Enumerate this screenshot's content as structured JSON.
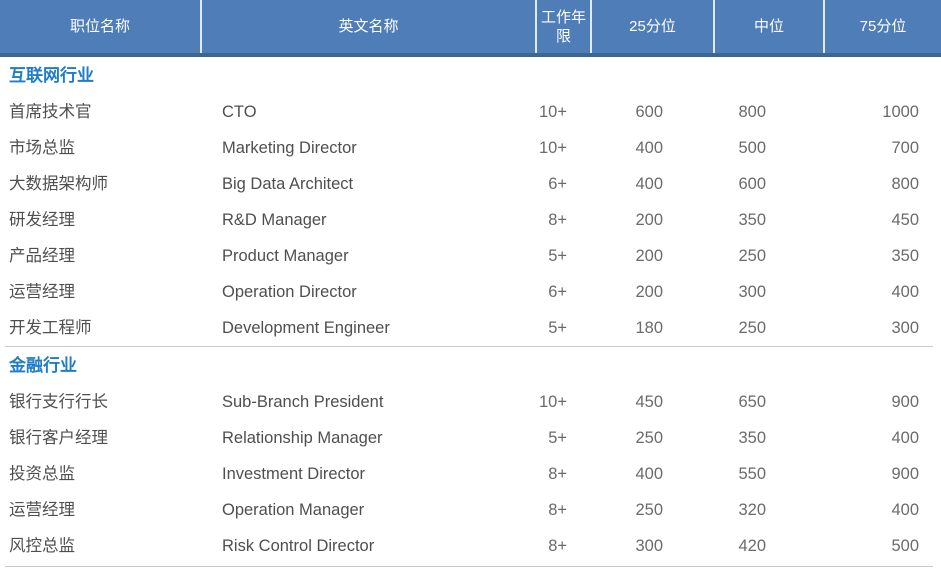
{
  "table": {
    "headers": [
      "职位名称",
      "英文名称",
      "工作年限",
      "25分位",
      "中位",
      "75分位"
    ],
    "sections": [
      {
        "title": "互联网行业",
        "rows": [
          {
            "position": "首席技术官",
            "english": "CTO",
            "years": "10+",
            "p25": "600",
            "median": "800",
            "p75": "1000"
          },
          {
            "position": "市场总监",
            "english": "Marketing Director",
            "years": "10+",
            "p25": "400",
            "median": "500",
            "p75": "700"
          },
          {
            "position": "大数据架构师",
            "english": "Big Data Architect",
            "years": "6+",
            "p25": "400",
            "median": "600",
            "p75": "800"
          },
          {
            "position": "研发经理",
            "english": "R&D Manager",
            "years": "8+",
            "p25": "200",
            "median": "350",
            "p75": "450"
          },
          {
            "position": "产品经理",
            "english": "Product Manager",
            "years": "5+",
            "p25": "200",
            "median": "250",
            "p75": "350"
          },
          {
            "position": "运营经理",
            "english": "Operation Director",
            "years": "6+",
            "p25": "200",
            "median": "300",
            "p75": "400"
          },
          {
            "position": "开发工程师",
            "english": "Development Engineer",
            "years": "5+",
            "p25": "180",
            "median": "250",
            "p75": "300"
          }
        ]
      },
      {
        "title": "金融行业",
        "rows": [
          {
            "position": "银行支行行长",
            "english": "Sub-Branch President",
            "years": "10+",
            "p25": "450",
            "median": "650",
            "p75": "900"
          },
          {
            "position": "银行客户经理",
            "english": "Relationship Manager",
            "years": "5+",
            "p25": "250",
            "median": "350",
            "p75": "400"
          },
          {
            "position": "投资总监",
            "english": "Investment Director",
            "years": "8+",
            "p25": "400",
            "median": "550",
            "p75": "900"
          },
          {
            "position": "运营经理",
            "english": "Operation Manager",
            "years": "8+",
            "p25": "250",
            "median": "320",
            "p75": "400"
          },
          {
            "position": "风控总监",
            "english": "Risk Control Director",
            "years": "8+",
            "p25": "300",
            "median": "420",
            "p75": "500"
          }
        ]
      }
    ],
    "colors": {
      "header_bg": "#4E7DB8",
      "header_border_bottom": "#3D6697",
      "header_separator": "#E1EBF6",
      "header_text": "#FFFFFF",
      "section_title_text": "#1F7DC8",
      "body_text": "#4F4F4F",
      "number_text": "#6B6B6B",
      "divider": "#C9C9C9"
    }
  }
}
